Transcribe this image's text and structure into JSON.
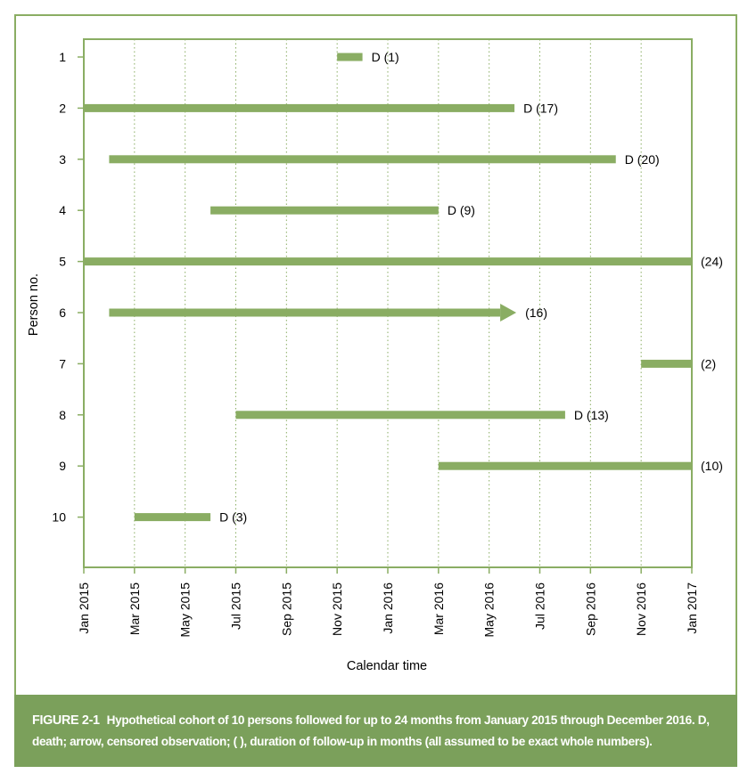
{
  "colors": {
    "frame": "#8aad63",
    "bar": "#8aad63",
    "axis": "#8aad63",
    "grid": "#8aad63",
    "caption_bg": "#7ba05b",
    "caption_text": "#ffffff",
    "text": "#000000"
  },
  "caption": {
    "label": "FIGURE 2-1",
    "text": "Hypothetical cohort of 10 persons followed for up to 24 months from January 2015 through December 2016. D, death; arrow, censored observation; ( ), duration of follow-up in months (all assumed to be exact whole numbers)."
  },
  "chart_data": {
    "type": "gantt",
    "xlabel": "Calendar time",
    "ylabel": "Person no.",
    "xlim": [
      "Jan 2015",
      "Jan 2017"
    ],
    "x_tick_labels": [
      "Jan 2015",
      "Mar 2015",
      "May 2015",
      "Jul 2015",
      "Sep 2015",
      "Nov 2015",
      "Jan 2016",
      "Mar 2016",
      "May 2016",
      "Jul 2016",
      "Sep 2016",
      "Nov 2016",
      "Jan 2017"
    ],
    "y_tick_labels": [
      "1",
      "2",
      "3",
      "4",
      "5",
      "6",
      "7",
      "8",
      "9",
      "10"
    ],
    "grid": "vertical dotted lines at tick positions",
    "series": [
      {
        "person": "1",
        "start": "Nov 2015",
        "end": "Dec 2015",
        "label": "D (1)",
        "arrow": false
      },
      {
        "person": "2",
        "start": "Jan 2015",
        "end": "Jun 2016",
        "label": "D (17)",
        "arrow": false
      },
      {
        "person": "3",
        "start": "Feb 2015",
        "end": "Oct 2016",
        "label": "D (20)",
        "arrow": false
      },
      {
        "person": "4",
        "start": "Jun 2015",
        "end": "Mar 2016",
        "label": "D (9)",
        "arrow": false
      },
      {
        "person": "5",
        "start": "Jan 2015",
        "end": "Jan 2017",
        "label": "(24)",
        "arrow": false
      },
      {
        "person": "6",
        "start": "Feb 2015",
        "end": "Jun 2016",
        "label": "(16)",
        "arrow": true
      },
      {
        "person": "7",
        "start": "Nov 2016",
        "end": "Jan 2017",
        "label": "(2)",
        "arrow": false
      },
      {
        "person": "8",
        "start": "Jul 2015",
        "end": "Aug 2016",
        "label": "D (13)",
        "arrow": false
      },
      {
        "person": "9",
        "start": "Mar 2016",
        "end": "Jan 2017",
        "label": "(10)",
        "arrow": false
      },
      {
        "person": "10",
        "start": "Mar 2015",
        "end": "Jun 2015",
        "label": "D (3)",
        "arrow": false
      }
    ]
  }
}
